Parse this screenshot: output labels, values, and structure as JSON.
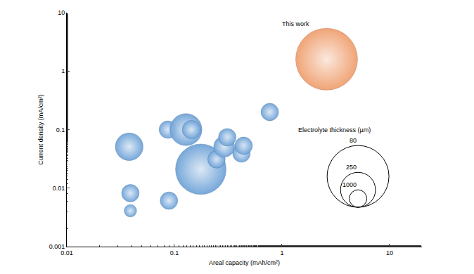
{
  "chart_data": {
    "type": "bubble",
    "xlabel": "Areal capacity (mAh/cm²)",
    "ylabel": "Current density (mA/cm²)",
    "log": true,
    "grid": false,
    "xlim": [
      0.01,
      20
    ],
    "ylim": [
      0.001,
      10
    ],
    "xticks": [
      0.01,
      0.1,
      1,
      10
    ],
    "yticks": [
      0.001,
      0.01,
      0.1,
      1,
      10
    ],
    "size_title": "Electrolyte thickness (µm)",
    "size_legend": [
      80,
      250,
      1000
    ],
    "series": [
      {
        "color": "#6fa3d8",
        "x": [
          0.176,
          0.038,
          0.039,
          0.039,
          0.087,
          0.128,
          0.144,
          0.089,
          0.246,
          0.29,
          0.31,
          0.42,
          0.44,
          0.77
        ],
        "y": [
          0.021,
          0.051,
          0.0082,
          0.0041,
          0.1,
          0.1,
          0.1,
          0.0061,
          0.031,
          0.051,
          0.074,
          0.039,
          0.053,
          0.2
        ],
        "thickness": [
          120,
          400,
          1000,
          2000,
          1000,
          300,
          900,
          1000,
          1000,
          700,
          1000,
          1000,
          1000,
          1000
        ]
      },
      {
        "name": "This work",
        "color": "#f0a070",
        "x": [
          2.6
        ],
        "y": [
          1.6
        ],
        "thickness": [
          80
        ]
      }
    ]
  }
}
